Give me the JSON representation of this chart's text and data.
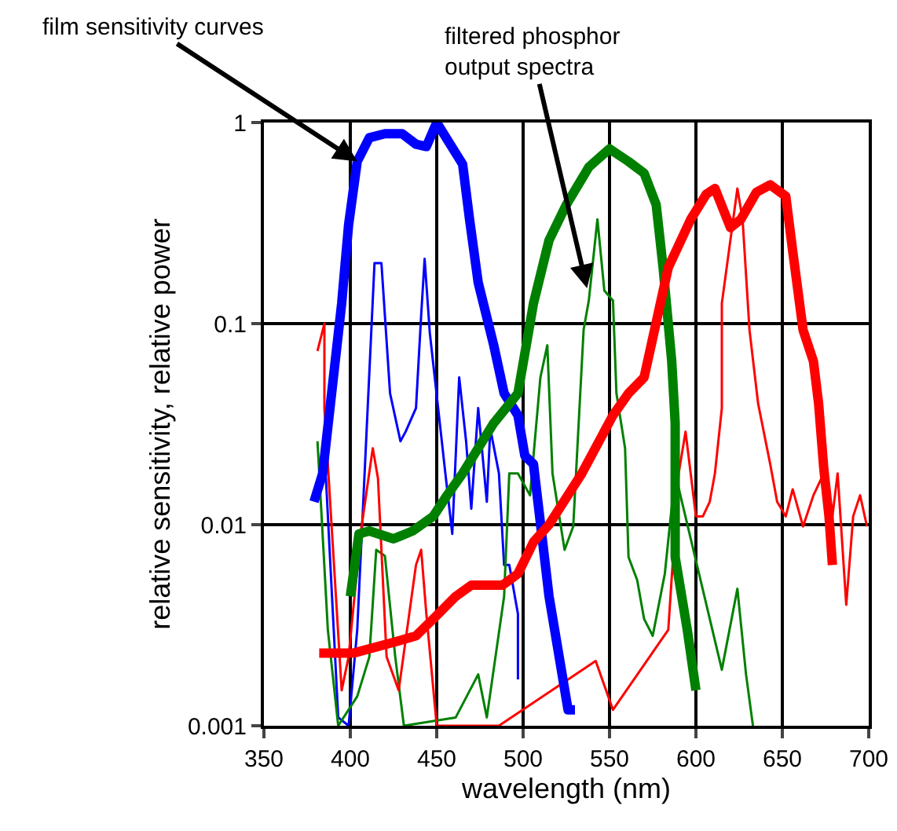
{
  "chart_data": {
    "type": "line",
    "xlabel": "wavelength (nm)",
    "ylabel": "relative sensitivity, relative power",
    "annotations": [
      {
        "text": "film sensitivity curves",
        "x": 404,
        "y": 0.64
      },
      {
        "text": "filtered phosphor\noutput spectra",
        "x": 537,
        "y": 0.15
      }
    ],
    "xlim": [
      350,
      700
    ],
    "xticks": [
      350,
      400,
      450,
      500,
      550,
      600,
      650,
      700
    ],
    "ylim": [
      0.001,
      1
    ],
    "yticks": [
      0.001,
      0.01,
      0.1,
      1
    ],
    "log": true,
    "grid": true,
    "marker": "none",
    "line_style": "solid",
    "series": [
      {
        "color": "#0000ff",
        "x": [
          379,
          384,
          395,
          399,
          404,
          411,
          420,
          430,
          438,
          444,
          450,
          457,
          465,
          469,
          474,
          483,
          489,
          497,
          501,
          506,
          515,
          526,
          530
        ],
        "values": [
          0.013,
          0.018,
          0.126,
          0.31,
          0.64,
          0.84,
          0.88,
          0.88,
          0.78,
          0.76,
          1.0,
          0.8,
          0.62,
          0.33,
          0.16,
          0.078,
          0.045,
          0.035,
          0.022,
          0.02,
          0.0044,
          0.0012,
          0.0012
        ]
      },
      {
        "color": "#008000",
        "x": [
          400,
          405,
          411,
          425,
          436,
          448,
          456,
          465,
          474,
          483,
          497,
          506,
          515,
          525,
          538,
          550,
          561,
          570,
          577,
          581,
          586,
          588,
          588,
          595,
          600
        ],
        "values": [
          0.0044,
          0.009,
          0.0093,
          0.0085,
          0.0093,
          0.011,
          0.014,
          0.018,
          0.024,
          0.032,
          0.045,
          0.126,
          0.26,
          0.39,
          0.6,
          0.74,
          0.64,
          0.56,
          0.39,
          0.19,
          0.065,
          0.032,
          0.0069,
          0.003,
          0.0015
        ]
      },
      {
        "color": "#ff0000",
        "x": [
          382,
          402,
          425,
          438,
          448,
          461,
          470,
          488,
          497,
          506,
          515,
          534,
          552,
          561,
          570,
          584,
          597,
          606,
          611,
          620,
          626,
          635,
          643,
          652,
          656,
          662,
          668,
          671,
          674,
          677,
          679
        ],
        "values": [
          0.0023,
          0.0023,
          0.0026,
          0.0028,
          0.0034,
          0.0044,
          0.005,
          0.005,
          0.0057,
          0.0082,
          0.01,
          0.018,
          0.035,
          0.045,
          0.054,
          0.19,
          0.33,
          0.44,
          0.47,
          0.3,
          0.33,
          0.45,
          0.49,
          0.43,
          0.23,
          0.093,
          0.065,
          0.04,
          0.019,
          0.011,
          0.0063
        ]
      },
      {
        "color": "#0000ff",
        "x": [
          385,
          393,
          399,
          404,
          414,
          418,
          423,
          429,
          432,
          438,
          441,
          443,
          446,
          455,
          459,
          463,
          467,
          470,
          474,
          479,
          481,
          486,
          489,
          492,
          497,
          497
        ],
        "values": [
          0.024,
          0.0011,
          0.001,
          0.003,
          0.2,
          0.2,
          0.045,
          0.026,
          0.029,
          0.038,
          0.11,
          0.21,
          0.09,
          0.018,
          0.009,
          0.054,
          0.026,
          0.012,
          0.038,
          0.013,
          0.03,
          0.018,
          0.0063,
          0.0063,
          0.0036,
          0.0017
        ]
      },
      {
        "color": "#008000",
        "x": [
          381,
          387,
          393,
          404,
          411,
          415,
          420,
          426,
          431,
          461,
          474,
          479,
          489,
          492,
          497,
          504,
          510,
          514,
          517,
          524,
          529,
          535,
          538,
          543,
          547,
          552,
          554,
          559,
          561,
          566,
          570,
          575,
          582,
          588,
          615,
          624,
          629,
          633
        ],
        "values": [
          0.026,
          0.003,
          0.001,
          0.0014,
          0.0022,
          0.0075,
          0.007,
          0.0022,
          0.001,
          0.0011,
          0.0018,
          0.0011,
          0.0044,
          0.018,
          0.018,
          0.014,
          0.054,
          0.078,
          0.018,
          0.0075,
          0.0098,
          0.093,
          0.13,
          0.33,
          0.146,
          0.13,
          0.045,
          0.024,
          0.0069,
          0.0053,
          0.0034,
          0.0028,
          0.0057,
          0.018,
          0.0019,
          0.0048,
          0.0018,
          0.001
        ]
      },
      {
        "color": "#ff0000",
        "x": [
          381,
          385,
          385,
          395,
          399,
          406,
          413,
          416,
          421,
          428,
          438,
          441,
          444,
          450,
          486,
          542,
          552,
          584,
          590,
          594,
          600,
          604,
          608,
          611,
          615,
          615,
          624,
          627,
          631,
          636,
          643,
          647,
          652,
          656,
          662,
          668,
          674,
          679,
          682,
          687,
          691,
          695,
          699
        ],
        "values": [
          0.073,
          0.1,
          0.038,
          0.0015,
          0.0022,
          0.0091,
          0.024,
          0.017,
          0.0022,
          0.0015,
          0.0063,
          0.0075,
          0.0036,
          0.001,
          0.001,
          0.0021,
          0.0012,
          0.003,
          0.018,
          0.029,
          0.011,
          0.011,
          0.013,
          0.018,
          0.038,
          0.126,
          0.47,
          0.33,
          0.093,
          0.04,
          0.02,
          0.013,
          0.011,
          0.015,
          0.0098,
          0.014,
          0.018,
          0.011,
          0.018,
          0.004,
          0.011,
          0.014,
          0.0098
        ]
      }
    ]
  }
}
